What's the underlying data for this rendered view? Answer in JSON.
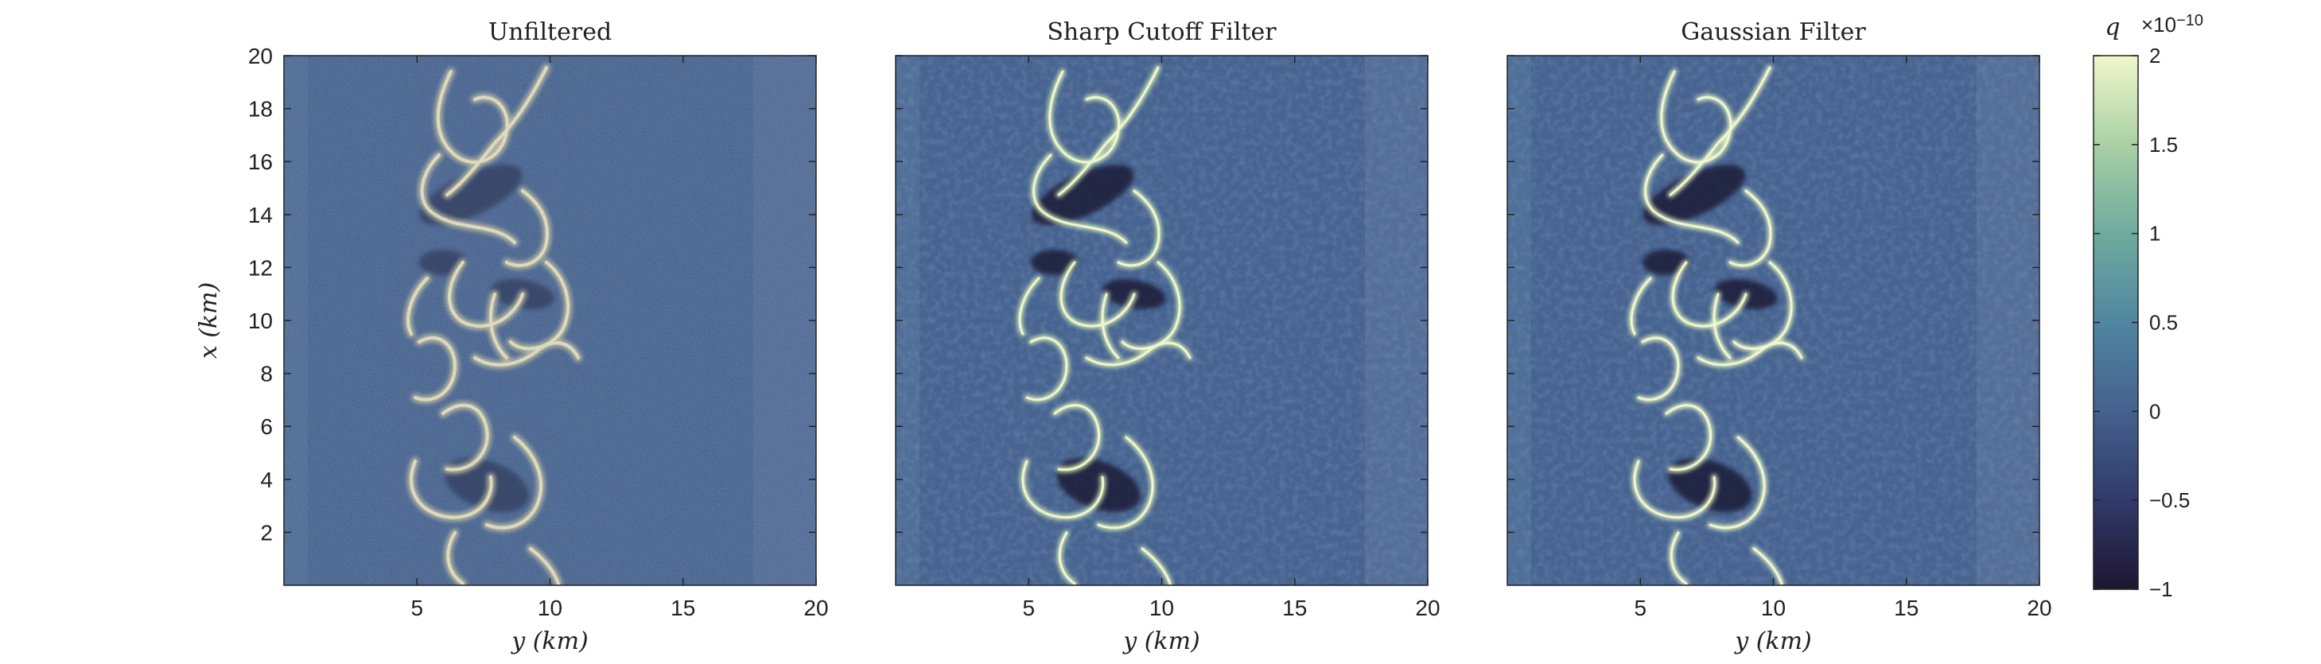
{
  "chart_data": [
    {
      "type": "heatmap",
      "title": "Unfiltered",
      "xlabel": "y (km)",
      "ylabel": "x (km)",
      "xlim": [
        0,
        20
      ],
      "ylim": [
        0,
        20
      ],
      "xticks": [
        "5",
        "10",
        "15",
        "20"
      ],
      "yticks": [
        "2",
        "4",
        "6",
        "8",
        "10",
        "12",
        "14",
        "16",
        "18",
        "20"
      ],
      "field": "q",
      "texture": "fine-grained speckle noise"
    },
    {
      "type": "heatmap",
      "title": "Sharp Cutoff Filter",
      "xlabel": "y (km)",
      "xlim": [
        0,
        20
      ],
      "ylim": [
        0,
        20
      ],
      "xticks": [
        "5",
        "10",
        "15",
        "20"
      ],
      "field": "q",
      "texture": "smoothed with ringing"
    },
    {
      "type": "heatmap",
      "title": "Gaussian Filter",
      "xlabel": "y (km)",
      "xlim": [
        0,
        20
      ],
      "ylim": [
        0,
        20
      ],
      "xticks": [
        "5",
        "10",
        "15",
        "20"
      ],
      "field": "q",
      "texture": "smoothed"
    }
  ],
  "colorbar": {
    "label": "q",
    "exponent_prefix": "×10",
    "exponent": "−10",
    "range": [
      -1,
      2
    ],
    "ticks": [
      "2",
      "1.5",
      "1",
      "0.5",
      "0",
      "−0.5",
      "−1"
    ],
    "tick_values": [
      2,
      1.5,
      1,
      0.5,
      0,
      -0.5,
      -1
    ],
    "colormap": [
      "#1e1630",
      "#303a6a",
      "#46618e",
      "#4f86a0",
      "#6faa9f",
      "#a9d0a4",
      "#f1f7cc"
    ]
  }
}
